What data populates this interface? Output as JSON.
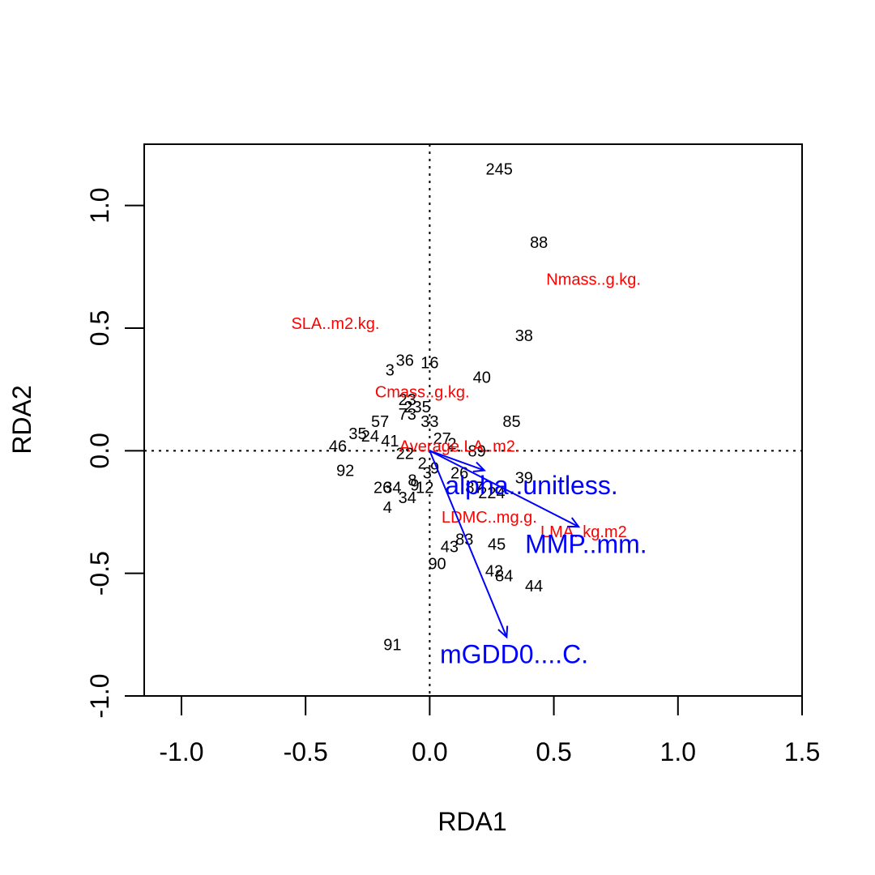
{
  "chart_data": {
    "type": "scatter",
    "title": "",
    "xlabel": "RDA1",
    "ylabel": "RDA2",
    "xlim": [
      -1.15,
      1.5
    ],
    "ylim": [
      -1.0,
      1.25
    ],
    "x_ticks": [
      -1.0,
      -0.5,
      0.0,
      0.5,
      1.0,
      1.5
    ],
    "x_tick_labels": [
      "-1.0",
      "-0.5",
      "0.0",
      "0.5",
      "1.0",
      "1.5"
    ],
    "y_ticks": [
      -1.0,
      -0.5,
      0.0,
      0.5,
      1.0
    ],
    "y_tick_labels": [
      "-1.0",
      "-0.5",
      "0.0",
      "0.5",
      "1.0"
    ],
    "reference_lines": {
      "x": 0,
      "y": 0,
      "style": "dotted"
    },
    "colors": {
      "sites": "#000000",
      "species": "#ff0000",
      "biplot": "#0000ff"
    },
    "sites": [
      {
        "label": "245",
        "x": 0.28,
        "y": 1.15
      },
      {
        "label": "88",
        "x": 0.44,
        "y": 0.85
      },
      {
        "label": "38",
        "x": 0.38,
        "y": 0.47
      },
      {
        "label": "40",
        "x": 0.21,
        "y": 0.3
      },
      {
        "label": "85",
        "x": 0.33,
        "y": 0.12
      },
      {
        "label": "3",
        "x": -0.16,
        "y": 0.33
      },
      {
        "label": "36",
        "x": -0.1,
        "y": 0.37
      },
      {
        "label": "16",
        "x": 0.0,
        "y": 0.36
      },
      {
        "label": "46",
        "x": -0.37,
        "y": 0.02
      },
      {
        "label": "92",
        "x": -0.34,
        "y": -0.08
      },
      {
        "label": "35",
        "x": -0.29,
        "y": 0.07
      },
      {
        "label": "57",
        "x": -0.2,
        "y": 0.12
      },
      {
        "label": "24",
        "x": -0.24,
        "y": 0.06
      },
      {
        "label": "23",
        "x": -0.09,
        "y": 0.21
      },
      {
        "label": "235",
        "x": -0.05,
        "y": 0.18
      },
      {
        "label": "73",
        "x": -0.09,
        "y": 0.15
      },
      {
        "label": "33",
        "x": 0.0,
        "y": 0.12
      },
      {
        "label": "27",
        "x": 0.05,
        "y": 0.05
      },
      {
        "label": "2",
        "x": 0.09,
        "y": 0.03
      },
      {
        "label": "41",
        "x": -0.16,
        "y": 0.04
      },
      {
        "label": "22",
        "x": -0.1,
        "y": -0.01
      },
      {
        "label": "2",
        "x": -0.03,
        "y": -0.05
      },
      {
        "label": "89",
        "x": 0.19,
        "y": 0.0
      },
      {
        "label": "39",
        "x": 0.38,
        "y": -0.11
      },
      {
        "label": "26",
        "x": 0.12,
        "y": -0.09
      },
      {
        "label": "3",
        "x": -0.01,
        "y": -0.09
      },
      {
        "label": "9",
        "x": 0.02,
        "y": -0.07
      },
      {
        "label": "26",
        "x": -0.19,
        "y": -0.15
      },
      {
        "label": "34",
        "x": -0.15,
        "y": -0.15
      },
      {
        "label": "9",
        "x": -0.06,
        "y": -0.14
      },
      {
        "label": "12",
        "x": -0.02,
        "y": -0.15
      },
      {
        "label": "8",
        "x": -0.07,
        "y": -0.12
      },
      {
        "label": "87",
        "x": 0.18,
        "y": -0.15
      },
      {
        "label": "224",
        "x": 0.25,
        "y": -0.17
      },
      {
        "label": "34",
        "x": -0.09,
        "y": -0.19
      },
      {
        "label": "4",
        "x": -0.17,
        "y": -0.23
      },
      {
        "label": "83",
        "x": 0.14,
        "y": -0.36
      },
      {
        "label": "43",
        "x": 0.08,
        "y": -0.39
      },
      {
        "label": "45",
        "x": 0.27,
        "y": -0.38
      },
      {
        "label": "90",
        "x": 0.03,
        "y": -0.46
      },
      {
        "label": "42",
        "x": 0.26,
        "y": -0.49
      },
      {
        "label": "84",
        "x": 0.3,
        "y": -0.51
      },
      {
        "label": "44",
        "x": 0.42,
        "y": -0.55
      },
      {
        "label": "91",
        "x": -0.15,
        "y": -0.79
      }
    ],
    "species": [
      {
        "label": "Nmass..g.kg.",
        "x": 0.66,
        "y": 0.7
      },
      {
        "label": "SLA..m2.kg.",
        "x": -0.38,
        "y": 0.52
      },
      {
        "label": "Cmass..g.kg.",
        "x": -0.03,
        "y": 0.24
      },
      {
        "label": "Average.LA..m2.",
        "x": 0.12,
        "y": 0.02
      },
      {
        "label": "LDMC..mg.g.",
        "x": 0.24,
        "y": -0.27
      },
      {
        "label": "LMA..kg.m2",
        "x": 0.62,
        "y": -0.33
      }
    ],
    "biplot": [
      {
        "label": "alpha..unitless.",
        "x": 0.22,
        "y": -0.08,
        "label_x": 0.41,
        "label_y": -0.14
      },
      {
        "label": "MMP..mm.",
        "x": 0.6,
        "y": -0.31,
        "label_x": 0.63,
        "label_y": -0.38
      },
      {
        "label": "mGDD0....C.",
        "x": 0.31,
        "y": -0.76,
        "label_x": 0.34,
        "label_y": -0.83
      }
    ]
  }
}
